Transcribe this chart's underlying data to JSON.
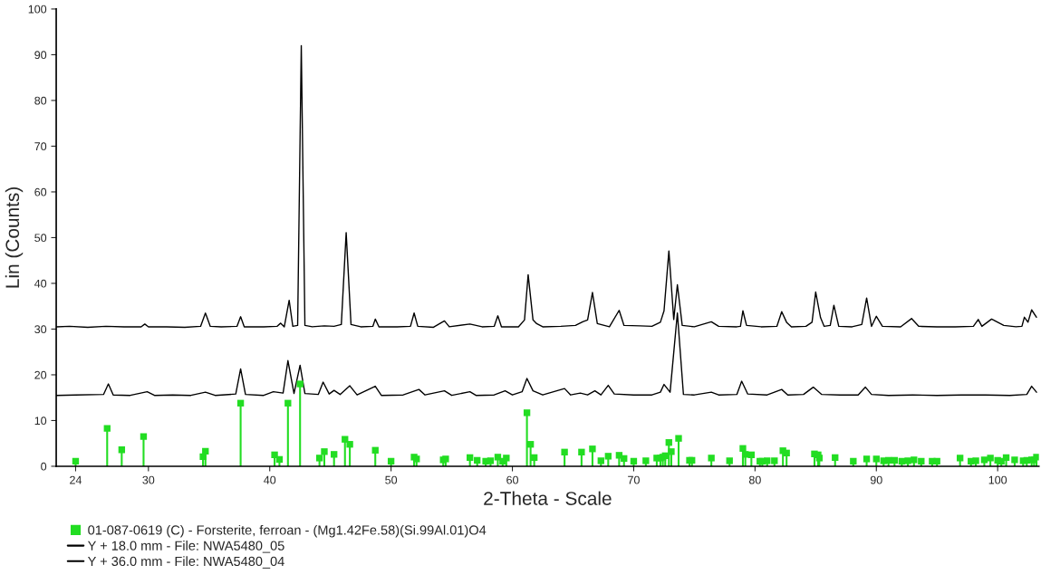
{
  "chart_data": {
    "type": "line",
    "xlabel": "2-Theta - Scale",
    "ylabel": "Lin (Counts)",
    "xlim": [
      22.4,
      103.4
    ],
    "ylim": [
      0,
      100
    ],
    "xticks": [
      24,
      30,
      40,
      50,
      60,
      70,
      80,
      90,
      100
    ],
    "yticks": [
      0,
      10,
      20,
      30,
      40,
      50,
      60,
      70,
      80,
      90,
      100
    ],
    "grid": false,
    "legend": "bottom",
    "line_style": "solid",
    "series": [
      {
        "name": "01-087-0619 (C) - Forsterite, ferroan - (Mg1.42Fe.58)(Si.99Al.01)O4",
        "type": "lollipop",
        "marker": "square",
        "color": "#22dd22",
        "x": [
          24.0,
          26.6,
          27.8,
          29.6,
          34.5,
          34.7,
          37.6,
          40.4,
          40.8,
          41.5,
          42.5,
          44.1,
          44.5,
          45.3,
          46.2,
          46.6,
          48.7,
          50.0,
          51.9,
          52.1,
          54.3,
          54.5,
          56.5,
          57.1,
          57.8,
          58.2,
          58.8,
          59.2,
          59.5,
          61.2,
          61.5,
          61.8,
          64.3,
          65.7,
          66.6,
          67.3,
          67.9,
          68.8,
          69.2,
          70.0,
          71.0,
          71.9,
          72.2,
          72.4,
          72.6,
          72.9,
          73.1,
          73.7,
          74.6,
          74.8,
          76.4,
          77.9,
          79.0,
          79.2,
          79.7,
          80.4,
          80.6,
          81.0,
          81.6,
          82.3,
          82.6,
          84.9,
          85.2,
          85.3,
          86.6,
          88.1,
          89.2,
          90.0,
          90.6,
          91.0,
          91.5,
          92.1,
          92.6,
          93.1,
          93.7,
          94.6,
          95.0,
          96.9,
          97.8,
          98.2,
          98.9,
          99.4,
          100.0,
          100.3,
          100.7,
          101.4,
          102.1,
          102.4,
          102.8,
          103.0,
          103.2
        ],
        "values": [
          1.1,
          8.3,
          3.6,
          6.5,
          2.1,
          3.3,
          13.8,
          2.5,
          1.5,
          13.8,
          18.0,
          1.8,
          3.2,
          2.6,
          5.9,
          4.8,
          3.5,
          1.1,
          2.0,
          1.6,
          1.4,
          1.6,
          1.9,
          1.3,
          1.1,
          1.2,
          2.0,
          1.1,
          1.8,
          11.7,
          4.8,
          1.9,
          3.1,
          3.1,
          3.8,
          1.2,
          2.2,
          2.4,
          1.7,
          1.1,
          1.2,
          1.8,
          1.8,
          2.0,
          2.3,
          5.2,
          3.2,
          6.1,
          1.3,
          1.3,
          1.8,
          1.2,
          3.9,
          2.6,
          2.5,
          1.1,
          1.1,
          1.2,
          1.2,
          3.4,
          2.9,
          2.7,
          2.5,
          1.8,
          1.9,
          1.1,
          1.6,
          1.6,
          1.2,
          1.3,
          1.3,
          1.1,
          1.2,
          1.4,
          1.1,
          1.1,
          1.1,
          1.8,
          1.1,
          1.2,
          1.4,
          1.8,
          1.3,
          1.1,
          1.9,
          1.4,
          1.2,
          1.3,
          1.4,
          1.4,
          2.0
        ]
      },
      {
        "name": "Y + 18.0 mm - File: NWA5480_05",
        "color": "#000000",
        "x": [
          22.4,
          24,
          26.3,
          26.7,
          27.1,
          28.5,
          29.9,
          30.5,
          32,
          33.5,
          34.7,
          35.5,
          37.2,
          37.6,
          38,
          39.5,
          40.3,
          41.1,
          41.5,
          42,
          42.5,
          42.9,
          44,
          44.4,
          44.9,
          45.3,
          45.8,
          46.6,
          47.2,
          48.7,
          49.2,
          51,
          52.3,
          52.8,
          54.4,
          55,
          56.5,
          57,
          58.5,
          59.4,
          60,
          60.8,
          61.2,
          61.7,
          62.5,
          64.3,
          64.8,
          65.6,
          66.2,
          66.8,
          67.3,
          67.9,
          68.4,
          70,
          71.5,
          72.2,
          72.5,
          73.0,
          73.6,
          74.1,
          75,
          76.4,
          77,
          78.5,
          78.9,
          79.4,
          81,
          82.2,
          82.7,
          84,
          84.8,
          85.5,
          87,
          88.5,
          89.1,
          89.6,
          91,
          93,
          95,
          97,
          99,
          101,
          102.4,
          102.8,
          103.2
        ],
        "values": [
          15.5,
          15.6,
          15.7,
          18.0,
          15.6,
          15.5,
          16.3,
          15.5,
          15.6,
          15.5,
          16.2,
          15.5,
          15.8,
          21.3,
          15.7,
          15.5,
          16.3,
          16.0,
          23.1,
          15.9,
          22.1,
          15.9,
          15.7,
          18.4,
          15.8,
          16.6,
          15.7,
          17.6,
          15.6,
          17.5,
          15.5,
          15.6,
          16.8,
          15.6,
          16.5,
          15.5,
          16.3,
          15.5,
          15.6,
          16.5,
          15.6,
          16.3,
          19.2,
          16.5,
          15.6,
          17.0,
          15.6,
          16.0,
          15.6,
          16.5,
          15.6,
          17.7,
          15.8,
          15.6,
          15.6,
          16.2,
          17.9,
          16.2,
          33.5,
          15.7,
          15.6,
          16.2,
          15.6,
          15.7,
          18.6,
          15.8,
          15.6,
          16.8,
          15.6,
          15.7,
          17.3,
          15.7,
          15.6,
          15.6,
          17.3,
          15.7,
          15.5,
          15.6,
          15.5,
          15.6,
          15.6,
          15.5,
          15.7,
          17.5,
          16.2
        ]
      },
      {
        "name": "Y + 36.0 mm - File: NWA5480_04",
        "color": "#000000",
        "x": [
          22.4,
          23.5,
          25,
          26.5,
          28,
          29.4,
          29.7,
          30,
          31.5,
          33,
          34.3,
          34.7,
          35.1,
          36,
          37.3,
          37.6,
          37.9,
          39.5,
          40.6,
          40.9,
          41.2,
          41.6,
          41.9,
          42.3,
          42.6,
          42.9,
          43.5,
          44.5,
          45.3,
          45.9,
          46.3,
          46.7,
          47.5,
          48.5,
          48.7,
          49,
          50.5,
          51.6,
          51.9,
          52.2,
          53.5,
          54.4,
          54.8,
          56.5,
          57.5,
          58.5,
          58.8,
          59.1,
          60.5,
          61,
          61.3,
          61.7,
          62,
          62.5,
          64,
          65.2,
          65.8,
          66.2,
          66.6,
          67,
          68,
          68.8,
          69.2,
          70.5,
          71.5,
          72.2,
          72.5,
          72.9,
          73.3,
          73.6,
          74,
          75,
          76.4,
          77,
          78.5,
          78.8,
          79.0,
          79.3,
          80.5,
          81.8,
          82.2,
          82.6,
          83,
          84.2,
          84.7,
          85.0,
          85.4,
          85.7,
          86.2,
          86.5,
          86.9,
          88,
          88.8,
          89.2,
          89.6,
          90.0,
          90.5,
          92,
          92.9,
          93.5,
          95,
          96.5,
          98,
          98.4,
          98.7,
          99.5,
          100.5,
          101.5,
          102,
          102.2,
          102.5,
          102.8,
          103.2
        ],
        "values": [
          30.5,
          30.6,
          30.4,
          30.6,
          30.5,
          30.5,
          31.1,
          30.5,
          30.5,
          30.4,
          30.6,
          33.5,
          30.6,
          30.5,
          30.6,
          32.7,
          30.5,
          30.5,
          30.6,
          31.3,
          30.5,
          36.3,
          30.6,
          30.8,
          92,
          30.8,
          30.5,
          30.7,
          30.6,
          31.0,
          51.1,
          31.0,
          30.5,
          30.6,
          32.2,
          30.5,
          30.5,
          30.6,
          33.5,
          30.6,
          30.4,
          31.8,
          30.5,
          31.1,
          30.5,
          30.6,
          32.9,
          30.5,
          30.5,
          32.0,
          41.9,
          32.0,
          31.2,
          30.5,
          30.6,
          30.8,
          31.6,
          32.0,
          38.0,
          31.2,
          30.5,
          34.1,
          30.8,
          30.7,
          30.6,
          31.5,
          34.0,
          47.1,
          32.1,
          39.7,
          30.8,
          30.5,
          31.6,
          30.6,
          30.5,
          30.6,
          34.0,
          30.8,
          30.5,
          30.6,
          33.8,
          31.5,
          30.5,
          30.6,
          31.5,
          38.1,
          32.5,
          30.6,
          30.8,
          35.2,
          30.6,
          30.5,
          31.0,
          36.8,
          30.6,
          32.8,
          30.6,
          30.5,
          32.3,
          30.6,
          30.5,
          30.5,
          30.6,
          32.1,
          30.6,
          32.2,
          30.8,
          30.5,
          30.6,
          32.6,
          31.5,
          34.2,
          32.6
        ]
      }
    ]
  }
}
